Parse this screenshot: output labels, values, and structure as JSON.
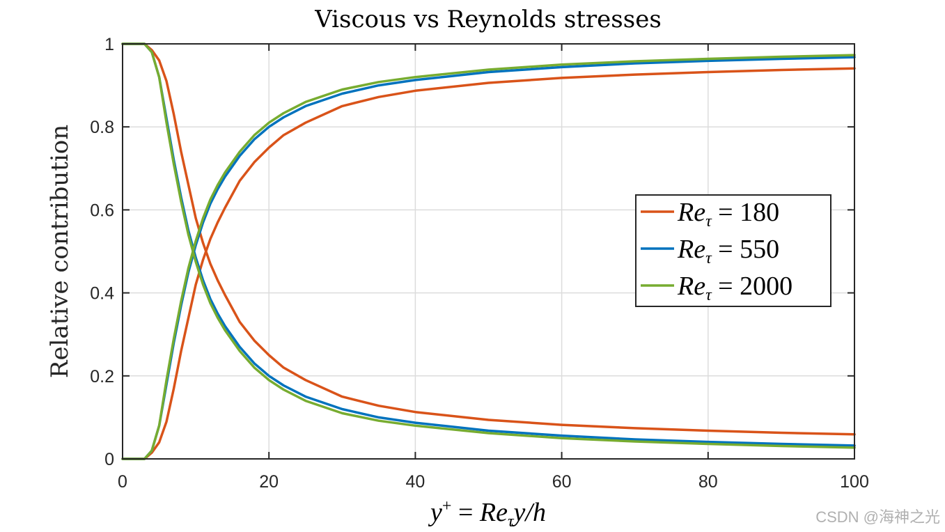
{
  "chart_data": {
    "type": "line",
    "title": "Viscous vs Reynolds stresses",
    "xlabel": "y⁺ = Reτ y/h",
    "xlabel_parts": {
      "lhs": "y",
      "sup": "+",
      "eq": " = ",
      "re": "Re",
      "sub": "τ",
      "rest": "y/h"
    },
    "ylabel": "Relative contribution",
    "xlim": [
      0,
      100
    ],
    "ylim": [
      0,
      1
    ],
    "grid": true,
    "legend_position": "right-center",
    "x_ticks": [
      0,
      20,
      40,
      60,
      80,
      100
    ],
    "x_tick_labels": [
      "0",
      "20",
      "40",
      "60",
      "80",
      "100"
    ],
    "y_ticks": [
      0,
      0.2,
      0.4,
      0.6,
      0.8,
      1
    ],
    "y_tick_labels": [
      "0",
      "0.2",
      "0.4",
      "0.6",
      "0.8",
      "1"
    ],
    "series": [
      {
        "name": "Reτ = 180",
        "legend_prefix": "Re",
        "legend_sub": "τ",
        "legend_value": "180",
        "color": "#D95319",
        "viscous": {
          "x": [
            0,
            3,
            4,
            5,
            6,
            7,
            8,
            9,
            10,
            11,
            12,
            13,
            14,
            16,
            18,
            20,
            22,
            25,
            30,
            35,
            40,
            50,
            60,
            70,
            80,
            90,
            100
          ],
          "y": [
            1,
            1,
            0.985,
            0.96,
            0.91,
            0.83,
            0.74,
            0.66,
            0.58,
            0.52,
            0.47,
            0.43,
            0.395,
            0.33,
            0.285,
            0.25,
            0.22,
            0.19,
            0.15,
            0.128,
            0.113,
            0.094,
            0.082,
            0.074,
            0.068,
            0.063,
            0.059
          ]
        },
        "reynolds": {
          "x": [
            0,
            3,
            4,
            5,
            6,
            7,
            8,
            9,
            10,
            11,
            12,
            13,
            14,
            16,
            18,
            20,
            22,
            25,
            30,
            35,
            40,
            50,
            60,
            70,
            80,
            90,
            100
          ],
          "y": [
            0,
            0,
            0.015,
            0.04,
            0.09,
            0.17,
            0.26,
            0.34,
            0.42,
            0.48,
            0.53,
            0.57,
            0.605,
            0.67,
            0.715,
            0.75,
            0.78,
            0.81,
            0.85,
            0.872,
            0.887,
            0.906,
            0.918,
            0.926,
            0.932,
            0.937,
            0.941
          ]
        }
      },
      {
        "name": "Reτ = 550",
        "legend_prefix": "Re",
        "legend_sub": "τ",
        "legend_value": "550",
        "color": "#0072BD",
        "viscous": {
          "x": [
            0,
            3,
            4,
            5,
            6,
            7,
            8,
            9,
            10,
            11,
            12,
            13,
            14,
            16,
            18,
            20,
            22,
            25,
            30,
            35,
            40,
            50,
            60,
            70,
            80,
            90,
            100
          ],
          "y": [
            1,
            1,
            0.98,
            0.92,
            0.82,
            0.72,
            0.63,
            0.55,
            0.485,
            0.43,
            0.385,
            0.35,
            0.32,
            0.27,
            0.23,
            0.2,
            0.177,
            0.15,
            0.12,
            0.1,
            0.087,
            0.068,
            0.056,
            0.047,
            0.041,
            0.036,
            0.032
          ]
        },
        "reynolds": {
          "x": [
            0,
            3,
            4,
            5,
            6,
            7,
            8,
            9,
            10,
            11,
            12,
            13,
            14,
            16,
            18,
            20,
            22,
            25,
            30,
            35,
            40,
            50,
            60,
            70,
            80,
            90,
            100
          ],
          "y": [
            0,
            0,
            0.02,
            0.08,
            0.18,
            0.28,
            0.37,
            0.45,
            0.515,
            0.57,
            0.615,
            0.65,
            0.68,
            0.73,
            0.77,
            0.8,
            0.823,
            0.85,
            0.88,
            0.9,
            0.913,
            0.932,
            0.944,
            0.953,
            0.959,
            0.964,
            0.968
          ]
        }
      },
      {
        "name": "Reτ = 2000",
        "legend_prefix": "Re",
        "legend_sub": "τ",
        "legend_value": "2000",
        "color": "#77AC30",
        "viscous": {
          "x": [
            0,
            3,
            4,
            5,
            6,
            7,
            8,
            9,
            10,
            11,
            12,
            13,
            14,
            16,
            18,
            20,
            22,
            25,
            30,
            35,
            40,
            50,
            60,
            70,
            80,
            90,
            100
          ],
          "y": [
            1,
            1,
            0.98,
            0.92,
            0.81,
            0.71,
            0.62,
            0.54,
            0.475,
            0.42,
            0.375,
            0.34,
            0.31,
            0.26,
            0.22,
            0.19,
            0.167,
            0.14,
            0.11,
            0.092,
            0.08,
            0.062,
            0.05,
            0.042,
            0.036,
            0.031,
            0.027
          ]
        },
        "reynolds": {
          "x": [
            0,
            3,
            4,
            5,
            6,
            7,
            8,
            9,
            10,
            11,
            12,
            13,
            14,
            16,
            18,
            20,
            22,
            25,
            30,
            35,
            40,
            50,
            60,
            70,
            80,
            90,
            100
          ],
          "y": [
            0,
            0,
            0.02,
            0.08,
            0.19,
            0.29,
            0.38,
            0.46,
            0.525,
            0.58,
            0.625,
            0.66,
            0.69,
            0.74,
            0.78,
            0.81,
            0.833,
            0.86,
            0.89,
            0.908,
            0.92,
            0.938,
            0.95,
            0.958,
            0.964,
            0.969,
            0.973
          ]
        }
      }
    ]
  },
  "watermark": "CSDN @海神之光"
}
